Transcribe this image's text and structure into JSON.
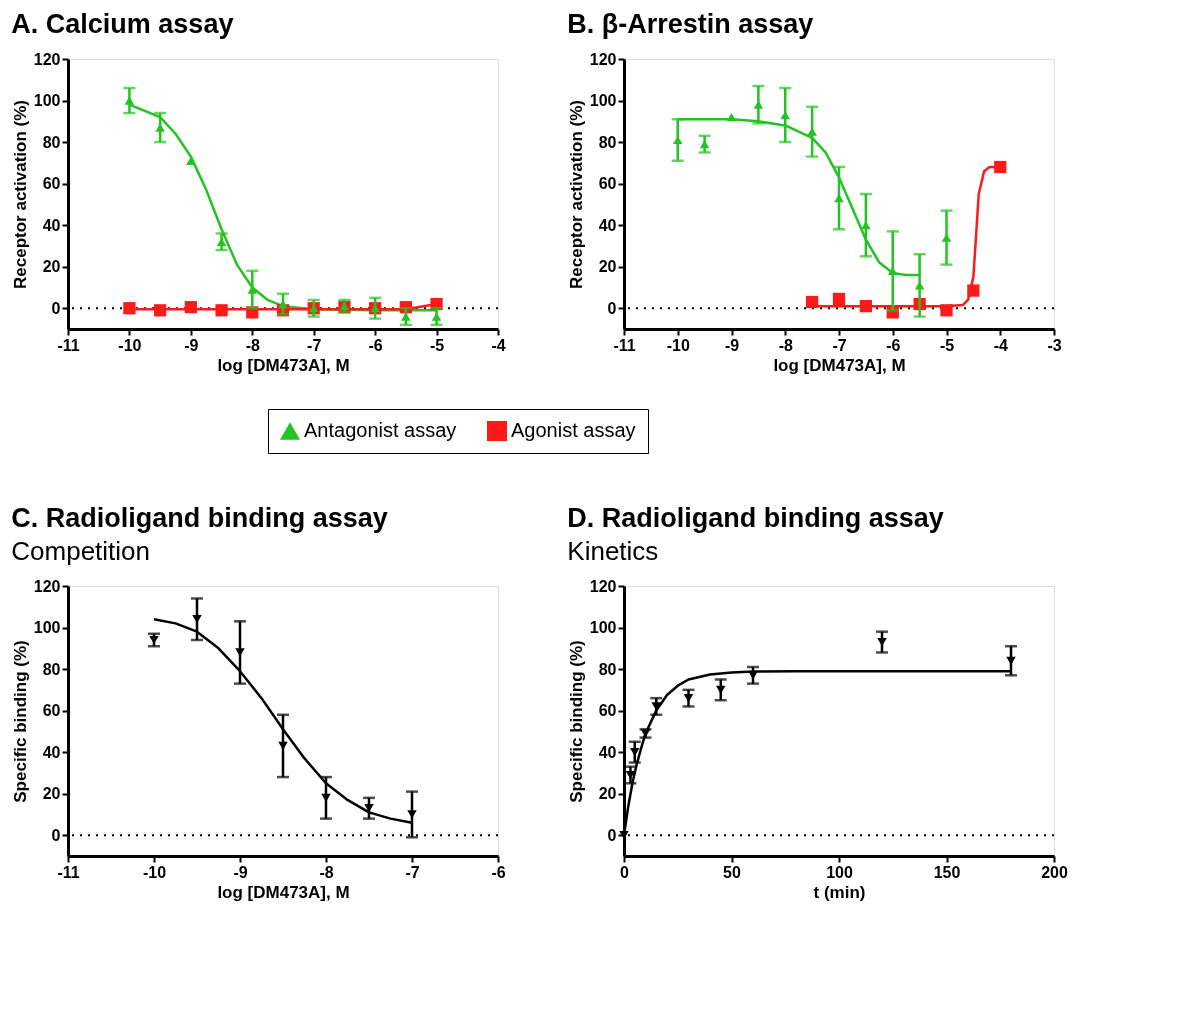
{
  "chart_data": [
    {
      "type": "scatter",
      "title": "A. Calcium assay",
      "xlabel": "log [DM473A], M",
      "ylabel": "Receptor activation (%)",
      "xlim": [
        -11,
        -4
      ],
      "xticks": [
        -11,
        -10,
        -9,
        -8,
        -7,
        -6,
        -5,
        -4
      ],
      "ylim": [
        -10,
        120
      ],
      "yticks": [
        0,
        20,
        40,
        60,
        80,
        100,
        120
      ],
      "grid": false,
      "legend": "bottom",
      "ref_lines": [
        {
          "axis": "y",
          "value": 0,
          "line_style": "dotted",
          "color": "#000000"
        }
      ],
      "series": [
        {
          "type": "line",
          "color": "#22c322",
          "line_style": "solid",
          "x": [
            -10,
            -9.5,
            -9.25,
            -9,
            -8.75,
            -8.5,
            -8.25,
            -8,
            -7.75,
            -7.5,
            -7,
            -6,
            -5
          ],
          "values": [
            98,
            92,
            84,
            73,
            57,
            38,
            21,
            10,
            4,
            1,
            -0.5,
            -1,
            -1
          ]
        },
        {
          "type": "line",
          "color": "#ff1a1a",
          "line_style": "solid",
          "x": [
            -10,
            -5.5,
            -5
          ],
          "values": [
            -0.5,
            -0.5,
            2
          ]
        },
        {
          "type": "scatter",
          "name": "Antagonist assay",
          "marker": "triangle",
          "color": "#22c322",
          "x": [
            -10,
            -9.5,
            -9,
            -8.5,
            -8,
            -7.5,
            -7,
            -6.5,
            -6,
            -5.5,
            -5
          ],
          "values": [
            100,
            87,
            71,
            32,
            9,
            2,
            0,
            1,
            0,
            -4,
            -4
          ],
          "errors": [
            6,
            7,
            null,
            4,
            9,
            5,
            4,
            3,
            5,
            4,
            4
          ]
        },
        {
          "type": "scatter",
          "name": "Agonist assay",
          "marker": "square",
          "color": "#ff1a1a",
          "x": [
            -10,
            -9.5,
            -9,
            -8.5,
            -8,
            -7.5,
            -7,
            -6.5,
            -6,
            -5.5,
            -5
          ],
          "values": [
            0,
            -1,
            0.5,
            -1,
            -2,
            -1,
            0,
            0.5,
            0,
            0.5,
            2
          ]
        }
      ]
    },
    {
      "type": "scatter",
      "title": "B. β-Arrestin assay",
      "xlabel": "log [DM473A], M",
      "ylabel": "Receptor activation (%)",
      "xlim": [
        -11,
        -3
      ],
      "xticks": [
        -11,
        -10,
        -9,
        -8,
        -7,
        -6,
        -5,
        -4,
        -3
      ],
      "ylim": [
        -10,
        120
      ],
      "yticks": [
        0,
        20,
        40,
        60,
        80,
        100,
        120
      ],
      "grid": false,
      "ref_lines": [
        {
          "axis": "y",
          "value": 0,
          "line_style": "dotted",
          "color": "#000000"
        }
      ],
      "series": [
        {
          "type": "line",
          "color": "#22c322",
          "line_style": "solid",
          "x": [
            -10,
            -9,
            -8.5,
            -8,
            -7.5,
            -7.25,
            -7,
            -6.75,
            -6.5,
            -6.25,
            -6,
            -5.75,
            -5.5
          ],
          "values": [
            91,
            91,
            90,
            88,
            82,
            75,
            63,
            48,
            33,
            22,
            17,
            16,
            16
          ]
        },
        {
          "type": "line",
          "color": "#ff1a1a",
          "line_style": "solid",
          "x": [
            -7.5,
            -5,
            -4.7,
            -4.6,
            -4.5,
            -4.45,
            -4.4,
            -4.3,
            -4.2,
            -4
          ],
          "values": [
            1,
            1,
            1.5,
            4,
            15,
            35,
            55,
            66,
            68,
            68
          ]
        },
        {
          "type": "scatter",
          "marker": "triangle",
          "color": "#22c322",
          "x": [
            -10,
            -9.5,
            -9,
            -8.5,
            -8,
            -7.5,
            -7,
            -6.5,
            -6,
            -5.5,
            -5
          ],
          "values": [
            81,
            79,
            92,
            98,
            93,
            85,
            53,
            40,
            18,
            11,
            34
          ],
          "errors": [
            10,
            4,
            null,
            9,
            13,
            12,
            15,
            15,
            19,
            15,
            13
          ]
        },
        {
          "type": "scatter",
          "marker": "square",
          "color": "#ff1a1a",
          "x": [
            -7.5,
            -7,
            -6.5,
            -6,
            -5.5,
            -5,
            -4.5,
            -4
          ],
          "values": [
            3,
            4.5,
            1,
            -2,
            2,
            -1,
            8.5,
            68
          ]
        }
      ]
    },
    {
      "type": "scatter",
      "title": "C. Radioligand binding assay",
      "subtitle": "Competition",
      "xlabel": "log [DM473A], M",
      "ylabel": "Specific binding (%)",
      "xlim": [
        -11,
        -6
      ],
      "xticks": [
        -11,
        -10,
        -9,
        -8,
        -7,
        -6
      ],
      "ylim": [
        -10,
        120
      ],
      "yticks": [
        0,
        20,
        40,
        60,
        80,
        100,
        120
      ],
      "grid": false,
      "ref_lines": [
        {
          "axis": "y",
          "value": 0,
          "line_style": "dotted",
          "color": "#000000"
        }
      ],
      "series": [
        {
          "type": "line",
          "color": "#000000",
          "line_style": "solid",
          "x": [
            -10,
            -9.75,
            -9.5,
            -9.25,
            -9,
            -8.75,
            -8.5,
            -8.25,
            -8,
            -7.75,
            -7.5,
            -7.25,
            -7
          ],
          "values": [
            104,
            102,
            98,
            90,
            79,
            66,
            51,
            37,
            25,
            17,
            11,
            8,
            6
          ]
        },
        {
          "type": "scatter",
          "marker": "triangle-down",
          "color": "#000000",
          "x": [
            -10,
            -9.5,
            -9,
            -8.5,
            -8,
            -7.5,
            -7
          ],
          "values": [
            94,
            104,
            88,
            43,
            18,
            13,
            10
          ],
          "errors": [
            3,
            10,
            15,
            15,
            10,
            5,
            11
          ]
        }
      ]
    },
    {
      "type": "scatter",
      "title": "D. Radioligand binding assay",
      "subtitle": "Kinetics",
      "xlabel": "t (min)",
      "ylabel": "Specific binding (%)",
      "xlim": [
        0,
        200
      ],
      "xticks": [
        0,
        50,
        100,
        150,
        200
      ],
      "ylim": [
        -10,
        120
      ],
      "yticks": [
        0,
        20,
        40,
        60,
        80,
        100,
        120
      ],
      "grid": false,
      "ref_lines": [
        {
          "axis": "y",
          "value": 0,
          "line_style": "dotted",
          "color": "#000000"
        }
      ],
      "series": [
        {
          "type": "line",
          "color": "#000000",
          "line_style": "solid",
          "x": [
            0,
            2,
            4,
            6,
            8,
            10,
            15,
            20,
            25,
            30,
            40,
            50,
            60,
            80,
            120,
            180
          ],
          "values": [
            0,
            14,
            25.5,
            34.5,
            42,
            49,
            60,
            67.5,
            72,
            75,
            77.4,
            78.4,
            78.8,
            79,
            79,
            79
          ]
        },
        {
          "type": "scatter",
          "marker": "triangle-down",
          "color": "#000000",
          "x": [
            0,
            3,
            5,
            10,
            15,
            30,
            45,
            60,
            120,
            180
          ],
          "values": [
            0,
            29,
            40,
            49,
            62,
            66,
            70,
            77,
            93,
            84
          ],
          "errors": [
            null,
            4,
            5,
            2,
            4,
            4,
            5,
            4,
            5,
            7
          ]
        }
      ]
    }
  ]
}
